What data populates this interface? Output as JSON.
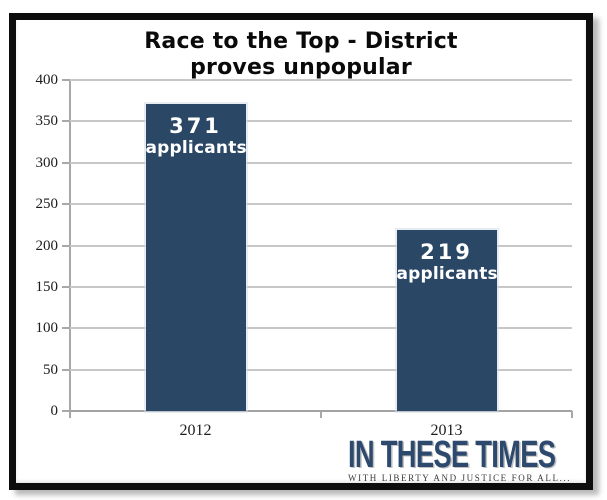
{
  "chart_data": {
    "type": "bar",
    "title": "Race to the Top - District proves unpopular",
    "title_lines": [
      "Race to the Top - District",
      "proves unpopular"
    ],
    "categories": [
      "2012",
      "2013"
    ],
    "values": [
      371,
      219
    ],
    "bar_value_labels": [
      "371",
      "219"
    ],
    "bar_sublabel": "applicants",
    "xlabel": "",
    "ylabel": "",
    "ylim": [
      0,
      400
    ],
    "ytick_step": 50,
    "ytick_labels": [
      "0",
      "50",
      "100",
      "150",
      "200",
      "250",
      "300",
      "350",
      "400"
    ],
    "grid": true,
    "legend": "none",
    "colors": {
      "bar": "#2b4766",
      "bar_label_text": "#ffffff",
      "gridline": "#c7c7c7",
      "axis": "#a8a8a8",
      "title_text": "#0a0a0a",
      "tick_label_text": "#1c1c1c"
    }
  },
  "logo": {
    "name": "IN THESE TIMES",
    "tagline": "WITH LIBERTY AND JUSTICE FOR ALL...",
    "color": "#2d4a6e"
  }
}
